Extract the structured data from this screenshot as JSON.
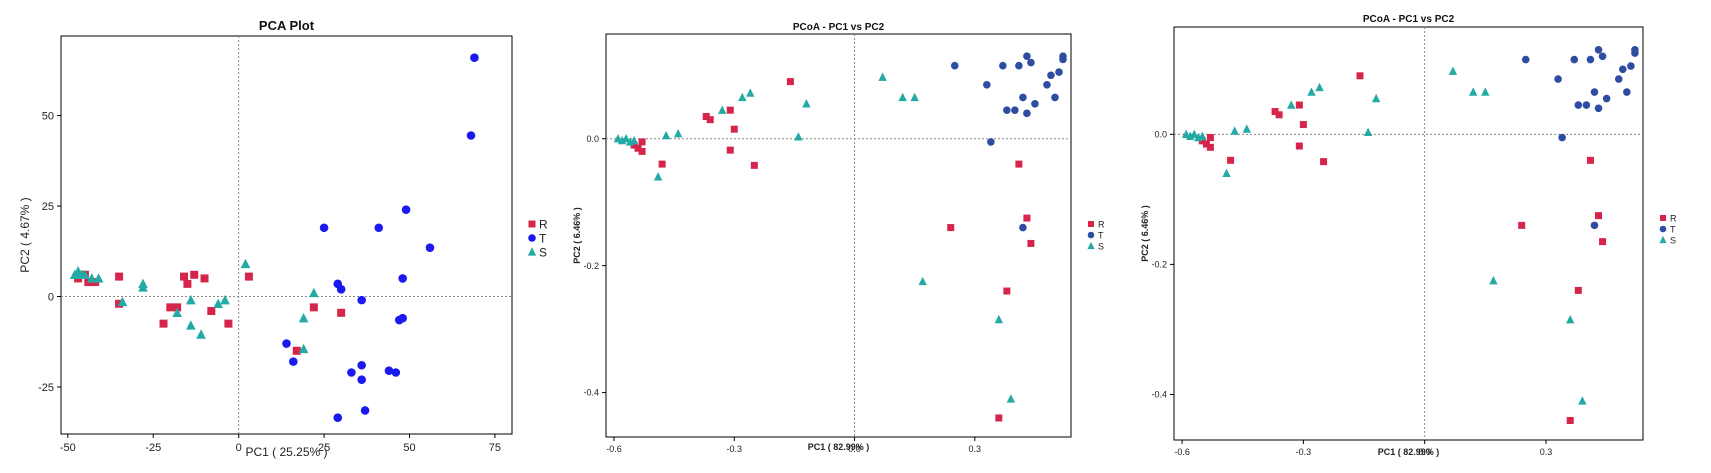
{
  "colors": {
    "R": "#d6254a",
    "T": "#1a1af0",
    "S": "#23aaa5",
    "T_dark": "#2f4da0"
  },
  "chart_data": [
    {
      "type": "scatter",
      "title": "PCA Plot",
      "xlabel": "PC1 ( 25.25% )",
      "ylabel": "PC2 ( 4.67% )",
      "xlim": [
        -52,
        80
      ],
      "ylim": [
        -38,
        72
      ],
      "xticks": [
        -50,
        -25,
        0,
        25,
        50,
        75
      ],
      "yticks": [
        -25,
        0,
        25,
        50
      ],
      "xtick_labels": [
        "-50",
        "-25",
        "0",
        "25",
        "50",
        "75"
      ],
      "ytick_labels": [
        "-25",
        "0",
        "25",
        "50"
      ],
      "legend_labels": [
        "R",
        "T",
        "S"
      ],
      "legend_position": "right",
      "zero_lines": true,
      "series": [
        {
          "name": "R",
          "marker": "square",
          "points": [
            [
              -47,
              5
            ],
            [
              -45,
              6
            ],
            [
              -44,
              4
            ],
            [
              -42,
              4
            ],
            [
              -35,
              5.5
            ],
            [
              -35,
              -2
            ],
            [
              -20,
              -3
            ],
            [
              -18,
              -3
            ],
            [
              -16,
              5.5
            ],
            [
              -15,
              3.5
            ],
            [
              -13,
              6
            ],
            [
              -10,
              5
            ],
            [
              -8,
              -4
            ],
            [
              -22,
              -7.5
            ],
            [
              -3,
              -7.5
            ],
            [
              3,
              5.5
            ],
            [
              17,
              -15
            ],
            [
              22,
              -3
            ],
            [
              30,
              -4.5
            ]
          ]
        },
        {
          "name": "T",
          "marker": "circle",
          "points": [
            [
              69,
              66
            ],
            [
              68,
              44.5
            ],
            [
              49,
              24
            ],
            [
              41,
              19
            ],
            [
              25,
              19
            ],
            [
              56,
              13.5
            ],
            [
              48,
              5
            ],
            [
              29,
              3.5
            ],
            [
              30,
              2
            ],
            [
              36,
              -1
            ],
            [
              48,
              -6
            ],
            [
              47,
              -6.5
            ],
            [
              14,
              -13
            ],
            [
              16,
              -18
            ],
            [
              36,
              -19
            ],
            [
              33,
              -21
            ],
            [
              44,
              -20.5
            ],
            [
              46,
              -21
            ],
            [
              36,
              -23
            ],
            [
              37,
              -31.5
            ],
            [
              29,
              -33.5
            ]
          ]
        },
        {
          "name": "S",
          "marker": "triangle",
          "points": [
            [
              -48,
              6
            ],
            [
              -47,
              7
            ],
            [
              -46,
              6
            ],
            [
              -45,
              6
            ],
            [
              -43,
              5
            ],
            [
              -41,
              5
            ],
            [
              -34,
              -1.5
            ],
            [
              -28,
              2.5
            ],
            [
              -28,
              3.5
            ],
            [
              -18,
              -4.5
            ],
            [
              -14,
              -1
            ],
            [
              -14,
              -8
            ],
            [
              -11,
              -10.5
            ],
            [
              -6,
              -2
            ],
            [
              -4,
              -1
            ],
            [
              2,
              9
            ],
            [
              22,
              1
            ],
            [
              19,
              -6
            ],
            [
              19,
              -14.5
            ]
          ]
        }
      ]
    },
    {
      "type": "scatter",
      "title": "PCoA - PC1 vs PC2",
      "xlabel": "PC1 ( 82.99% )",
      "ylabel": "PC2 ( 6.46% )",
      "xlim": [
        -0.62,
        0.54
      ],
      "ylim": [
        -0.47,
        0.165
      ],
      "xticks": [
        -0.6,
        -0.3,
        0.0,
        0.3
      ],
      "yticks": [
        -0.4,
        -0.2,
        0.0
      ],
      "xtick_labels": [
        "-0.6",
        "-0.3",
        "0.0",
        "0.3"
      ],
      "ytick_labels": [
        "-0.4",
        "-0.2",
        "0.0"
      ],
      "legend_labels": [
        "R",
        "T",
        "S"
      ],
      "legend_position": "right",
      "zero_lines": true,
      "series": [
        {
          "name": "R",
          "marker": "square",
          "points": [
            [
              -0.55,
              -0.01
            ],
            [
              -0.54,
              -0.015
            ],
            [
              -0.53,
              -0.02
            ],
            [
              -0.53,
              -0.005
            ],
            [
              -0.48,
              -0.04
            ],
            [
              -0.37,
              0.035
            ],
            [
              -0.36,
              0.03
            ],
            [
              -0.31,
              0.045
            ],
            [
              -0.3,
              0.015
            ],
            [
              -0.31,
              -0.018
            ],
            [
              -0.25,
              -0.042
            ],
            [
              -0.16,
              0.09
            ],
            [
              0.24,
              -0.14
            ],
            [
              0.38,
              -0.24
            ],
            [
              0.41,
              -0.04
            ],
            [
              0.43,
              -0.125
            ],
            [
              0.44,
              -0.165
            ],
            [
              0.36,
              -0.44
            ]
          ]
        },
        {
          "name": "T",
          "marker": "circle",
          "points": [
            [
              0.25,
              0.115
            ],
            [
              0.33,
              0.085
            ],
            [
              0.37,
              0.115
            ],
            [
              0.38,
              0.045
            ],
            [
              0.4,
              0.045
            ],
            [
              0.41,
              0.115
            ],
            [
              0.42,
              0.065
            ],
            [
              0.43,
              0.13
            ],
            [
              0.43,
              0.04
            ],
            [
              0.44,
              0.12
            ],
            [
              0.45,
              0.055
            ],
            [
              0.48,
              0.085
            ],
            [
              0.49,
              0.1
            ],
            [
              0.5,
              0.065
            ],
            [
              0.51,
              0.105
            ],
            [
              0.52,
              0.125
            ],
            [
              0.52,
              0.13
            ],
            [
              0.34,
              -0.005
            ],
            [
              0.42,
              -0.14
            ]
          ]
        },
        {
          "name": "S",
          "marker": "triangle",
          "points": [
            [
              -0.59,
              0.0
            ],
            [
              -0.58,
              -0.003
            ],
            [
              -0.57,
              0.0
            ],
            [
              -0.56,
              -0.005
            ],
            [
              -0.55,
              -0.003
            ],
            [
              -0.49,
              -0.06
            ],
            [
              -0.47,
              0.005
            ],
            [
              -0.44,
              0.008
            ],
            [
              -0.33,
              0.045
            ],
            [
              -0.28,
              0.065
            ],
            [
              -0.26,
              0.072
            ],
            [
              -0.12,
              0.055
            ],
            [
              -0.14,
              0.003
            ],
            [
              0.07,
              0.097
            ],
            [
              0.12,
              0.065
            ],
            [
              0.15,
              0.065
            ],
            [
              0.17,
              -0.225
            ],
            [
              0.36,
              -0.285
            ],
            [
              0.39,
              -0.41
            ]
          ]
        }
      ]
    },
    {
      "type": "scatter",
      "title": "PCoA - PC1 vs PC2",
      "xlabel": "PC1 ( 82.99% )",
      "ylabel": "PC2 ( 6.46% )",
      "xlim": [
        -0.62,
        0.54
      ],
      "ylim": [
        -0.47,
        0.165
      ],
      "xticks": [
        -0.6,
        -0.3,
        0.0,
        0.3
      ],
      "yticks": [
        -0.4,
        -0.2,
        0.0
      ],
      "xtick_labels": [
        "-0.6",
        "-0.3",
        "0.0",
        "0.3"
      ],
      "ytick_labels": [
        "-0.4",
        "-0.2",
        "0.0"
      ],
      "legend_labels": [
        "R",
        "T",
        "S"
      ],
      "legend_position": "right",
      "zero_lines": true,
      "series": [
        {
          "name": "R",
          "marker": "square",
          "points": [
            [
              -0.55,
              -0.01
            ],
            [
              -0.54,
              -0.015
            ],
            [
              -0.53,
              -0.02
            ],
            [
              -0.53,
              -0.005
            ],
            [
              -0.48,
              -0.04
            ],
            [
              -0.37,
              0.035
            ],
            [
              -0.36,
              0.03
            ],
            [
              -0.31,
              0.045
            ],
            [
              -0.3,
              0.015
            ],
            [
              -0.31,
              -0.018
            ],
            [
              -0.25,
              -0.042
            ],
            [
              -0.16,
              0.09
            ],
            [
              0.24,
              -0.14
            ],
            [
              0.38,
              -0.24
            ],
            [
              0.41,
              -0.04
            ],
            [
              0.43,
              -0.125
            ],
            [
              0.44,
              -0.165
            ],
            [
              0.36,
              -0.44
            ]
          ]
        },
        {
          "name": "T",
          "marker": "circle",
          "points": [
            [
              0.25,
              0.115
            ],
            [
              0.33,
              0.085
            ],
            [
              0.37,
              0.115
            ],
            [
              0.38,
              0.045
            ],
            [
              0.4,
              0.045
            ],
            [
              0.41,
              0.115
            ],
            [
              0.42,
              0.065
            ],
            [
              0.43,
              0.13
            ],
            [
              0.43,
              0.04
            ],
            [
              0.44,
              0.12
            ],
            [
              0.45,
              0.055
            ],
            [
              0.48,
              0.085
            ],
            [
              0.49,
              0.1
            ],
            [
              0.5,
              0.065
            ],
            [
              0.51,
              0.105
            ],
            [
              0.52,
              0.125
            ],
            [
              0.52,
              0.13
            ],
            [
              0.34,
              -0.005
            ],
            [
              0.42,
              -0.14
            ]
          ]
        },
        {
          "name": "S",
          "marker": "triangle",
          "points": [
            [
              -0.59,
              0.0
            ],
            [
              -0.58,
              -0.003
            ],
            [
              -0.57,
              0.0
            ],
            [
              -0.56,
              -0.005
            ],
            [
              -0.55,
              -0.003
            ],
            [
              -0.49,
              -0.06
            ],
            [
              -0.47,
              0.005
            ],
            [
              -0.44,
              0.008
            ],
            [
              -0.33,
              0.045
            ],
            [
              -0.28,
              0.065
            ],
            [
              -0.26,
              0.072
            ],
            [
              -0.12,
              0.055
            ],
            [
              -0.14,
              0.003
            ],
            [
              0.07,
              0.097
            ],
            [
              0.12,
              0.065
            ],
            [
              0.15,
              0.065
            ],
            [
              0.17,
              -0.225
            ],
            [
              0.36,
              -0.285
            ],
            [
              0.39,
              -0.41
            ]
          ]
        }
      ]
    }
  ]
}
